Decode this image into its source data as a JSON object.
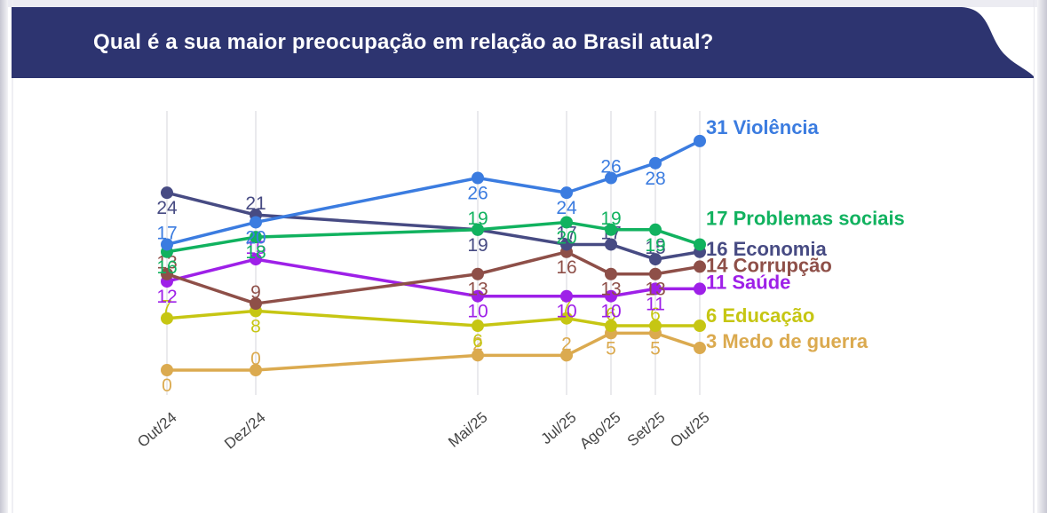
{
  "banner": {
    "title": "Qual é a sua maior preocupação em relação ao Brasil atual?",
    "bg_color": "#2d3470",
    "text_color": "#ffffff"
  },
  "chart_data": {
    "type": "line",
    "title": "Qual é a sua maior preocupação em relação ao Brasil atual?",
    "xlabel": "",
    "ylabel": "",
    "ylim": [
      0,
      33
    ],
    "grid": "vertical gridlines only",
    "legend_position": "end-of-line labels at right",
    "x_tick_labels": [
      "Out/24",
      "Dez/24",
      "Mai/25",
      "Jul/25",
      "Ago/25",
      "Set/25",
      "Out/25"
    ],
    "month_offsets": [
      0,
      2,
      7,
      9,
      10,
      11,
      12
    ],
    "gridline_color": "#e4e4e7",
    "tick_label_color": "#444444",
    "series": [
      {
        "id": "violencia",
        "name": "Violência",
        "color": "#3b7ce0",
        "values": [
          17,
          20,
          26,
          24,
          26,
          28,
          31
        ],
        "end_label": "31 Violência",
        "label_side": [
          "above",
          "below",
          "below",
          "below",
          "above",
          "below",
          "end"
        ],
        "end_label_dy": -8
      },
      {
        "id": "problemas-sociais",
        "name": "Problemas sociais",
        "color": "#11b25f",
        "values": [
          16,
          18,
          19,
          20,
          19,
          19,
          17
        ],
        "end_label": "17 Problemas sociais",
        "label_side": [
          "below",
          "below",
          "above",
          "below",
          "above",
          "below",
          "end"
        ],
        "end_label_dy": -22
      },
      {
        "id": "economia",
        "name": "Economia",
        "color": "#474b83",
        "values": [
          24,
          21,
          19,
          17,
          17,
          15,
          16
        ],
        "end_label": "16 Economia",
        "label_side": [
          "below",
          "above",
          "below",
          "above",
          "above",
          "above",
          "end"
        ],
        "end_label_dy": 4
      },
      {
        "id": "corrupcao",
        "name": "Corrupção",
        "color": "#8e4f48",
        "values": [
          13,
          9,
          13,
          16,
          13,
          13,
          14
        ],
        "end_label": "14 Corrupção",
        "label_side": [
          "above",
          "above",
          "below",
          "below",
          "below",
          "below",
          "end"
        ],
        "end_label_dy": 6
      },
      {
        "id": "saude",
        "name": "Saúde",
        "color": "#9e20e8",
        "values": [
          12,
          15,
          10,
          10,
          10,
          11,
          11
        ],
        "end_label": "11 Saúde",
        "label_side": [
          "below",
          "above",
          "below",
          "below",
          "below",
          "below",
          "end"
        ],
        "end_label_dy": 0
      },
      {
        "id": "educacao",
        "name": "Educação",
        "color": "#c6c613",
        "values": [
          7,
          8,
          6,
          7,
          6,
          6,
          6
        ],
        "end_label": "6 Educação",
        "label_side": [
          "above",
          "below",
          "below",
          "above",
          "above",
          "above",
          "end"
        ],
        "end_label_dy": -4
      },
      {
        "id": "medo-de-guerra",
        "name": "Medo de guerra",
        "color": "#dbaa4f",
        "values": [
          0,
          0,
          2,
          2,
          5,
          5,
          3
        ],
        "end_label": "3 Medo de guerra",
        "label_side": [
          "below",
          "above",
          "above",
          "above",
          "below",
          "below",
          "end"
        ],
        "end_label_dy": 0
      }
    ]
  }
}
